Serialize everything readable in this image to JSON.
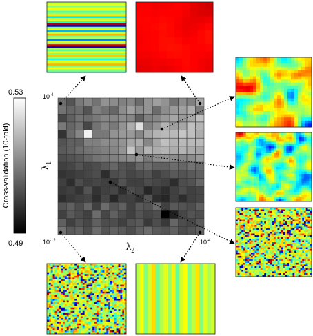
{
  "chart_data": {
    "type": "heatmap",
    "title": "",
    "xlabel": "λ",
    "xlabel_sub": "2",
    "ylabel": "λ",
    "ylabel_sub": "1",
    "x_tick_left_base": "10",
    "x_tick_left_exp": "-12",
    "x_tick_right_base": "10",
    "x_tick_right_exp": "-4",
    "y_tick_top_base": "10",
    "y_tick_top_exp": "-4",
    "colorbar": {
      "label": "Cross-validation (10-fold)",
      "max_label": "0.53",
      "min_label": "0.49",
      "range": [
        0.49,
        0.53
      ],
      "colormap": "gray"
    },
    "grid_size": 17,
    "values_note_free": true,
    "values": [
      [
        0.507,
        0.503,
        0.509,
        0.511,
        0.508,
        0.513,
        0.512,
        0.51,
        0.511,
        0.507,
        0.513,
        0.515,
        0.513,
        0.508,
        0.512,
        0.51,
        0.516
      ],
      [
        0.508,
        0.506,
        0.507,
        0.503,
        0.51,
        0.508,
        0.506,
        0.512,
        0.515,
        0.512,
        0.513,
        0.507,
        0.512,
        0.514,
        0.515,
        0.517,
        0.509
      ],
      [
        0.501,
        0.505,
        0.508,
        0.507,
        0.509,
        0.511,
        0.511,
        0.512,
        0.511,
        0.505,
        0.51,
        0.511,
        0.514,
        0.516,
        0.514,
        0.516,
        0.52
      ],
      [
        0.509,
        0.506,
        0.508,
        0.501,
        0.508,
        0.511,
        0.509,
        0.513,
        0.517,
        0.525,
        0.51,
        0.513,
        0.518,
        0.515,
        0.516,
        0.52,
        0.518
      ],
      [
        0.498,
        0.507,
        0.511,
        0.528,
        0.509,
        0.509,
        0.513,
        0.514,
        0.514,
        0.511,
        0.516,
        0.518,
        0.519,
        0.519,
        0.521,
        0.52,
        0.517
      ],
      [
        0.503,
        0.505,
        0.505,
        0.51,
        0.51,
        0.512,
        0.512,
        0.513,
        0.516,
        0.517,
        0.511,
        0.516,
        0.52,
        0.518,
        0.519,
        0.519,
        0.519
      ],
      [
        0.504,
        0.505,
        0.507,
        0.508,
        0.509,
        0.51,
        0.511,
        0.513,
        0.521,
        0.514,
        0.518,
        0.517,
        0.518,
        0.517,
        0.518,
        0.517,
        0.516
      ],
      [
        0.502,
        0.503,
        0.504,
        0.506,
        0.508,
        0.509,
        0.51,
        0.511,
        0.512,
        0.513,
        0.509,
        0.512,
        0.513,
        0.512,
        0.511,
        0.512,
        0.514
      ],
      [
        0.5,
        0.501,
        0.503,
        0.501,
        0.502,
        0.504,
        0.506,
        0.503,
        0.502,
        0.506,
        0.507,
        0.505,
        0.505,
        0.507,
        0.506,
        0.508,
        0.507
      ],
      [
        0.498,
        0.499,
        0.5,
        0.501,
        0.502,
        0.497,
        0.502,
        0.503,
        0.501,
        0.502,
        0.503,
        0.5,
        0.502,
        0.504,
        0.503,
        0.504,
        0.505
      ],
      [
        0.5,
        0.497,
        0.502,
        0.5,
        0.501,
        0.5,
        0.499,
        0.503,
        0.5,
        0.5,
        0.502,
        0.501,
        0.5,
        0.497,
        0.502,
        0.503,
        0.506
      ],
      [
        0.499,
        0.5,
        0.498,
        0.503,
        0.498,
        0.5,
        0.501,
        0.497,
        0.502,
        0.501,
        0.496,
        0.499,
        0.497,
        0.5,
        0.502,
        0.5,
        0.501
      ],
      [
        0.497,
        0.499,
        0.5,
        0.501,
        0.497,
        0.501,
        0.496,
        0.5,
        0.5,
        0.498,
        0.503,
        0.497,
        0.496,
        0.5,
        0.497,
        0.5,
        0.501
      ],
      [
        0.503,
        0.505,
        0.502,
        0.506,
        0.5,
        0.507,
        0.503,
        0.505,
        0.5,
        0.504,
        0.503,
        0.507,
        0.5,
        0.504,
        0.503,
        0.502,
        0.505
      ],
      [
        0.5,
        0.504,
        0.502,
        0.5,
        0.507,
        0.501,
        0.505,
        0.502,
        0.5,
        0.503,
        0.501,
        0.502,
        0.49,
        0.495,
        0.501,
        0.503,
        0.502
      ],
      [
        0.505,
        0.5,
        0.503,
        0.501,
        0.505,
        0.502,
        0.502,
        0.5,
        0.503,
        0.504,
        0.499,
        0.502,
        0.499,
        0.506,
        0.502,
        0.501,
        0.504
      ],
      [
        0.508,
        0.504,
        0.505,
        0.502,
        0.507,
        0.503,
        0.505,
        0.504,
        0.502,
        0.505,
        0.507,
        0.504,
        0.503,
        0.505,
        0.502,
        0.503,
        0.505
      ]
    ],
    "insets": [
      {
        "name": "stripes-horizontal",
        "colormap": "jet"
      },
      {
        "name": "uniform-red",
        "colormap": "jet"
      },
      {
        "name": "smooth-large-blobs",
        "colormap": "jet"
      },
      {
        "name": "medium-blobs",
        "colormap": "jet"
      },
      {
        "name": "fine-noise-right",
        "colormap": "jet"
      },
      {
        "name": "fine-noise-bottom",
        "colormap": "jet"
      },
      {
        "name": "stripes-vertical",
        "colormap": "jet"
      }
    ]
  }
}
